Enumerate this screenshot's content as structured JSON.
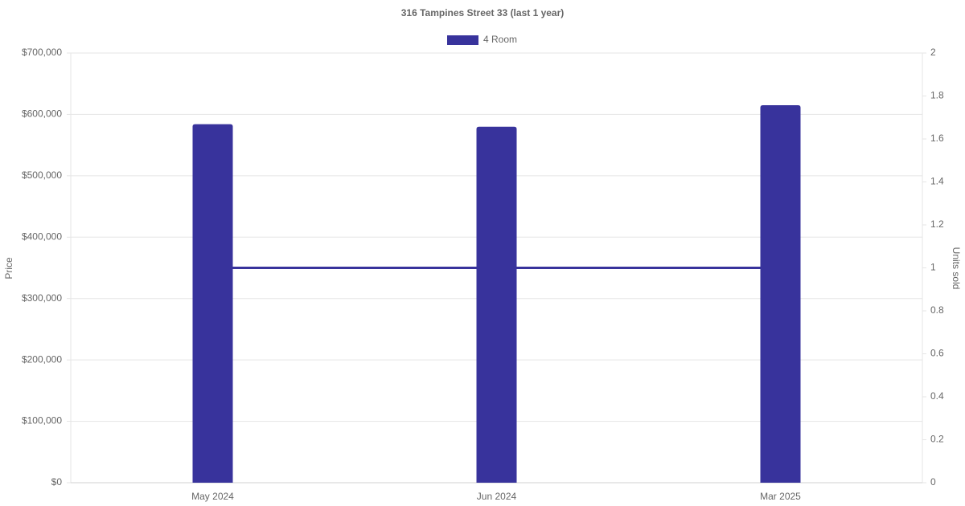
{
  "chart_data": {
    "type": "bar",
    "title": "316 Tampines Street 33 (last 1 year)",
    "y_label": "Price",
    "y2_label": "Units sold",
    "categories": [
      "May 2024",
      "Jun 2024",
      "Mar 2025"
    ],
    "series": [
      {
        "name": "4 Room",
        "type": "bar",
        "color": "#38339c",
        "values": [
          584000,
          580000,
          615000
        ]
      },
      {
        "type": "line",
        "axis": "y2",
        "color": "#38339c",
        "values": [
          1,
          1,
          1
        ]
      }
    ],
    "ylim": [
      0,
      700000
    ],
    "yticks": [
      {
        "value": 0,
        "label": "$0"
      },
      {
        "value": 100000,
        "label": "$100,000"
      },
      {
        "value": 200000,
        "label": "$200,000"
      },
      {
        "value": 300000,
        "label": "$300,000"
      },
      {
        "value": 400000,
        "label": "$400,000"
      },
      {
        "value": 500000,
        "label": "$500,000"
      },
      {
        "value": 600000,
        "label": "$600,000"
      },
      {
        "value": 700000,
        "label": "$700,000"
      }
    ],
    "y2lim": [
      0,
      2
    ],
    "y2ticks": [
      0,
      0.2,
      0.4,
      0.6,
      0.8,
      1,
      1.2,
      1.4,
      1.6,
      1.8,
      2
    ],
    "grid": true,
    "legend": "top"
  }
}
